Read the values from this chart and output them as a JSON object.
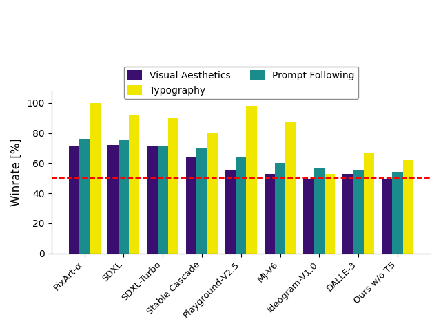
{
  "categories": [
    "PixArt-α",
    "SDXL",
    "SDXL-Turbo",
    "Stable Cascade",
    "Playground-V2.5",
    "MJ-V6",
    "Ideogram-V1.0",
    "DALLE-3",
    "Ours w/o T5"
  ],
  "visual_aesthetics": [
    71,
    72,
    71,
    64,
    55,
    53,
    49,
    53,
    49
  ],
  "prompt_following": [
    76,
    75,
    71,
    70,
    64,
    60,
    57,
    55,
    54
  ],
  "typography": [
    100,
    92,
    90,
    80,
    98,
    87,
    53,
    67,
    62
  ],
  "bar_colors": {
    "visual_aesthetics": "#3b0f70",
    "prompt_following": "#1a8c8c",
    "typography": "#f0e600"
  },
  "ylabel": "Winrate [%]",
  "ylim": [
    0,
    108
  ],
  "yticks": [
    0,
    20,
    40,
    60,
    80,
    100
  ],
  "hline_y": 50,
  "hline_color": "red",
  "bar_width": 0.27
}
